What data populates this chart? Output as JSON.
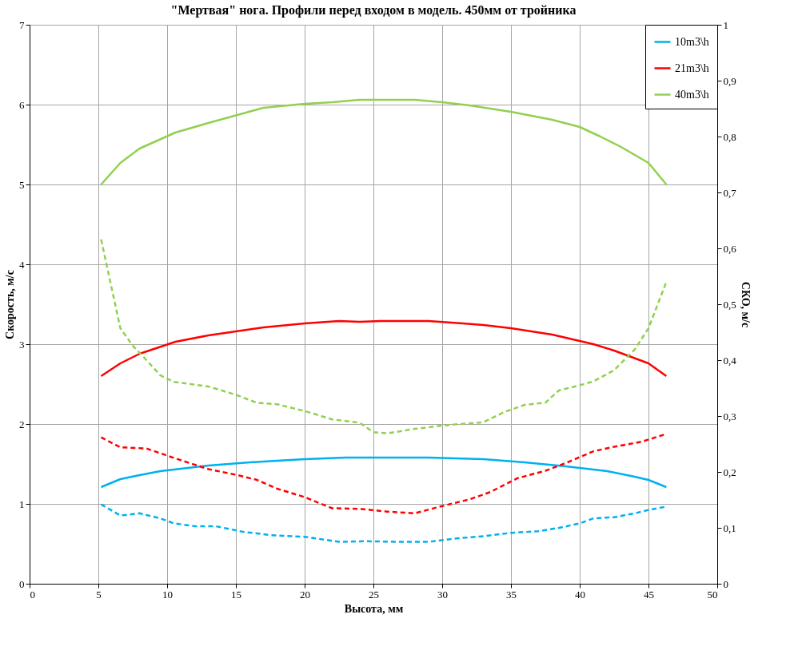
{
  "chart_data": {
    "type": "line",
    "title": "\"Мертвая\"  нога. Профили перед входом в модель. 450мм от тройника",
    "xlabel": "Высота, мм",
    "ylabel": "Скорость, м/с",
    "y2label": "СКО, м/с",
    "xlim": [
      0,
      50
    ],
    "xticks": [
      0,
      5,
      10,
      15,
      20,
      25,
      30,
      35,
      40,
      45,
      50
    ],
    "ylim": [
      0,
      7
    ],
    "yticks": [
      0,
      1,
      2,
      3,
      4,
      5,
      6,
      7
    ],
    "y2lim": [
      0,
      1
    ],
    "y2ticks": [
      {
        "value": 0,
        "label": "0"
      },
      {
        "value": 0.1,
        "label": "0,1"
      },
      {
        "value": 0.2,
        "label": "0,2"
      },
      {
        "value": 0.3,
        "label": "0,3"
      },
      {
        "value": 0.4,
        "label": "0,4"
      },
      {
        "value": 0.5,
        "label": "0,5"
      },
      {
        "value": 0.6,
        "label": "0,6"
      },
      {
        "value": 0.7,
        "label": "0,7"
      },
      {
        "value": 0.8,
        "label": "0,8"
      },
      {
        "value": 0.9,
        "label": "0,9"
      },
      {
        "value": 1,
        "label": "1"
      }
    ],
    "grid": true,
    "legend": "top right",
    "marker": "none",
    "series": [
      {
        "name": "10m3\\h",
        "color": "#00b0f0",
        "line_style": "solid",
        "x": [
          5.2,
          6.6,
          8,
          9.5,
          11,
          13,
          16,
          20,
          23,
          29,
          33,
          36,
          39,
          42,
          44,
          45,
          46.3
        ],
        "values": [
          1.21,
          1.31,
          1.36,
          1.41,
          1.44,
          1.48,
          1.52,
          1.56,
          1.58,
          1.58,
          1.56,
          1.52,
          1.47,
          1.41,
          1.34,
          1.3,
          1.21
        ]
      },
      {
        "name": "21m3\\h",
        "color": "#ff0000",
        "line_style": "solid",
        "x": [
          5.2,
          6.6,
          8,
          10.6,
          13,
          17,
          20,
          22.5,
          24,
          25.5,
          29,
          31.5,
          33,
          35,
          38,
          41,
          42.5,
          45,
          46.3
        ],
        "values": [
          2.6,
          2.76,
          2.88,
          3.03,
          3.11,
          3.21,
          3.26,
          3.29,
          3.28,
          3.29,
          3.29,
          3.26,
          3.24,
          3.2,
          3.12,
          3.0,
          2.92,
          2.76,
          2.6
        ]
      },
      {
        "name": "40m3\\h",
        "color": "#92d050",
        "line_style": "solid",
        "x": [
          5.2,
          6.6,
          8,
          10.6,
          13,
          17,
          20,
          22,
          24,
          26,
          28,
          30,
          32,
          35,
          38,
          40,
          41.5,
          43,
          45,
          46.3
        ],
        "values": [
          5.0,
          5.27,
          5.45,
          5.65,
          5.77,
          5.96,
          6.01,
          6.03,
          6.06,
          6.06,
          6.06,
          6.03,
          5.99,
          5.91,
          5.81,
          5.72,
          5.6,
          5.47,
          5.27,
          5.0
        ]
      },
      {
        "color": "#00b0f0",
        "line_style": "dashed",
        "axis": "y2",
        "x": [
          5.2,
          6.6,
          8,
          9.5,
          10.5,
          12,
          13.5,
          15.5,
          17.5,
          20,
          22.5,
          24.5,
          27,
          29,
          31,
          33,
          35,
          37,
          38.5,
          40,
          41,
          42.5,
          44,
          45,
          46.3
        ],
        "values": [
          0.142,
          0.122,
          0.126,
          0.117,
          0.108,
          0.103,
          0.103,
          0.093,
          0.087,
          0.084,
          0.075,
          0.076,
          0.075,
          0.075,
          0.081,
          0.085,
          0.091,
          0.094,
          0.1,
          0.108,
          0.117,
          0.119,
          0.126,
          0.132,
          0.138
        ]
      },
      {
        "color": "#ff0000",
        "line_style": "dashed",
        "axis": "y2",
        "x": [
          5.2,
          6.6,
          8.5,
          10.5,
          13,
          15,
          16.5,
          18,
          20,
          22,
          24,
          26,
          28,
          30,
          32,
          33.5,
          35.5,
          37.5,
          39,
          41,
          42.5,
          44.5,
          46.3
        ],
        "values": [
          0.262,
          0.244,
          0.242,
          0.225,
          0.205,
          0.195,
          0.186,
          0.17,
          0.155,
          0.135,
          0.134,
          0.129,
          0.126,
          0.139,
          0.151,
          0.164,
          0.189,
          0.202,
          0.216,
          0.237,
          0.245,
          0.254,
          0.268
        ]
      },
      {
        "color": "#92d050",
        "line_style": "dashed",
        "axis": "y2",
        "x": [
          5.2,
          6.6,
          7.5,
          8.5,
          9.5,
          10.5,
          13,
          15,
          16.5,
          18,
          20,
          22,
          24,
          25,
          26,
          28,
          30,
          33,
          34.5,
          36,
          37.5,
          38.5,
          40,
          41,
          42.5,
          44,
          45,
          46.3
        ],
        "values": [
          0.616,
          0.457,
          0.426,
          0.4,
          0.373,
          0.361,
          0.353,
          0.338,
          0.324,
          0.321,
          0.309,
          0.294,
          0.288,
          0.271,
          0.269,
          0.277,
          0.283,
          0.289,
          0.307,
          0.32,
          0.324,
          0.346,
          0.355,
          0.362,
          0.382,
          0.419,
          0.457,
          0.54
        ]
      }
    ]
  }
}
